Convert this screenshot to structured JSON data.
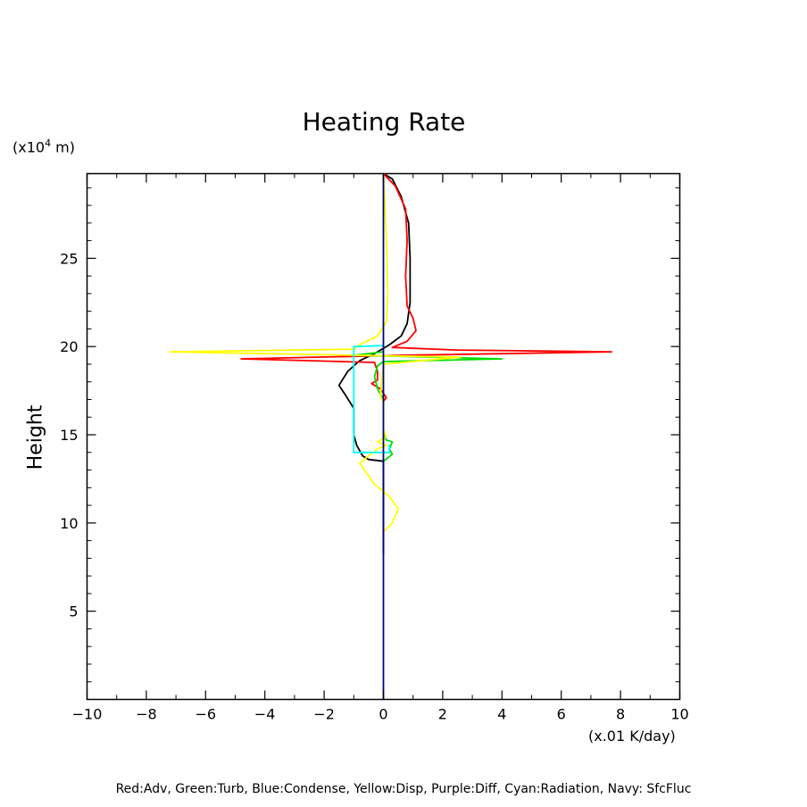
{
  "chart_data": {
    "type": "line",
    "title": "Heating Rate",
    "xlabel": "(x.01 K/day)",
    "ylabel": "Height",
    "y_unit": "(x10",
    "y_unit_exp": "4",
    "y_unit_tail": " m)",
    "xlim": [
      -10,
      10
    ],
    "ylim": [
      0,
      29.8
    ],
    "x_ticks": [
      -10,
      -8,
      -6,
      -4,
      -2,
      0,
      2,
      4,
      6,
      8,
      10
    ],
    "x_tick_labels": [
      "−10",
      "−8",
      "−6",
      "−4",
      "−2",
      "0",
      "2",
      "4",
      "6",
      "8",
      "10"
    ],
    "y_ticks": [
      5,
      10,
      15,
      20,
      25
    ],
    "y_tick_labels": [
      "5",
      "10",
      "15",
      "20",
      "25"
    ],
    "grid": false,
    "legend_text": "Red:Adv, Green:Turb, Blue:Condense, Yellow:Disp, Purple:Diff, Cyan:Radiation, Navy: SfcFluc",
    "series": [
      {
        "color": "#000000",
        "points": [
          [
            0.0,
            8.3
          ],
          [
            0.0,
            12
          ],
          [
            0.0,
            13.5
          ],
          [
            -0.5,
            13.6
          ],
          [
            -0.7,
            13.8
          ],
          [
            -0.9,
            14.4
          ],
          [
            -1.0,
            15.0
          ],
          [
            -1.0,
            16.5
          ],
          [
            -1.3,
            17.3
          ],
          [
            -1.5,
            17.8
          ],
          [
            -1.2,
            18.6
          ],
          [
            -0.8,
            19.2
          ],
          [
            -0.3,
            19.6
          ],
          [
            0.2,
            20.1
          ],
          [
            0.6,
            20.6
          ],
          [
            0.8,
            21.3
          ],
          [
            0.9,
            22.5
          ],
          [
            0.9,
            25
          ],
          [
            0.85,
            27
          ],
          [
            0.6,
            28.5
          ],
          [
            0.3,
            29.5
          ],
          [
            0.0,
            29.8
          ]
        ]
      },
      {
        "color": "#ff0000",
        "points": [
          [
            0.0,
            16.9
          ],
          [
            0.1,
            17.1
          ],
          [
            -0.1,
            17.6
          ],
          [
            -0.4,
            17.9
          ],
          [
            -0.2,
            18.1
          ],
          [
            -0.2,
            18.6
          ],
          [
            -0.3,
            19.1
          ],
          [
            -4.8,
            19.3
          ],
          [
            0.5,
            19.5
          ],
          [
            7.7,
            19.7
          ],
          [
            2.5,
            19.8
          ],
          [
            0.3,
            19.95
          ],
          [
            0.8,
            20.3
          ],
          [
            1.1,
            20.9
          ],
          [
            1.0,
            21.6
          ],
          [
            0.8,
            22.3
          ],
          [
            0.75,
            24
          ],
          [
            0.8,
            26
          ],
          [
            0.75,
            27.8
          ],
          [
            0.4,
            29.1
          ],
          [
            0.0,
            29.8
          ]
        ]
      },
      {
        "color": "#00dd00",
        "points": [
          [
            0.0,
            13.5
          ],
          [
            0.3,
            13.9
          ],
          [
            0.2,
            14.2
          ],
          [
            0.3,
            14.6
          ],
          [
            0.1,
            14.7
          ],
          [
            0.0,
            15.0
          ],
          [
            0.0,
            17.0
          ],
          [
            -0.2,
            17.6
          ],
          [
            -0.3,
            18.3
          ],
          [
            -0.2,
            18.9
          ],
          [
            0.0,
            19.15
          ],
          [
            4.0,
            19.3
          ],
          [
            0.5,
            19.45
          ],
          [
            -1.0,
            19.5
          ],
          [
            0.0,
            19.7
          ]
        ]
      },
      {
        "color": "#ffff00",
        "points": [
          [
            0.0,
            9.5
          ],
          [
            0.3,
            10.0
          ],
          [
            0.5,
            10.8
          ],
          [
            0.2,
            11.5
          ],
          [
            -0.3,
            12.2
          ],
          [
            -0.6,
            12.9
          ],
          [
            -0.8,
            13.4
          ],
          [
            -0.5,
            13.8
          ],
          [
            -0.2,
            14.2
          ],
          [
            0.1,
            14.4
          ],
          [
            -0.2,
            14.6
          ],
          [
            0.1,
            14.9
          ],
          [
            0.0,
            15.3
          ],
          [
            0.0,
            16.8
          ],
          [
            -0.1,
            17.2
          ],
          [
            0.0,
            19.0
          ],
          [
            2.6,
            19.4
          ],
          [
            -7.2,
            19.7
          ],
          [
            -1.0,
            19.85
          ],
          [
            -0.8,
            20.1
          ],
          [
            -0.2,
            20.6
          ],
          [
            0.1,
            21.4
          ],
          [
            0.15,
            23
          ],
          [
            0.1,
            26
          ],
          [
            0.05,
            28
          ],
          [
            0.0,
            29.8
          ]
        ]
      },
      {
        "color": "#ff00ff",
        "points": [
          [
            0.0,
            9.4
          ],
          [
            0.0,
            9.7
          ]
        ]
      },
      {
        "color": "#00ffff",
        "points": [
          [
            0.0,
            20.05
          ],
          [
            -1.0,
            20.0
          ],
          [
            -1.0,
            14.0
          ],
          [
            0.2,
            14.0
          ],
          [
            0.2,
            14.4
          ]
        ]
      },
      {
        "color": "#000080",
        "points": [
          [
            0.0,
            0.0
          ],
          [
            0.0,
            29.8
          ]
        ]
      }
    ]
  }
}
